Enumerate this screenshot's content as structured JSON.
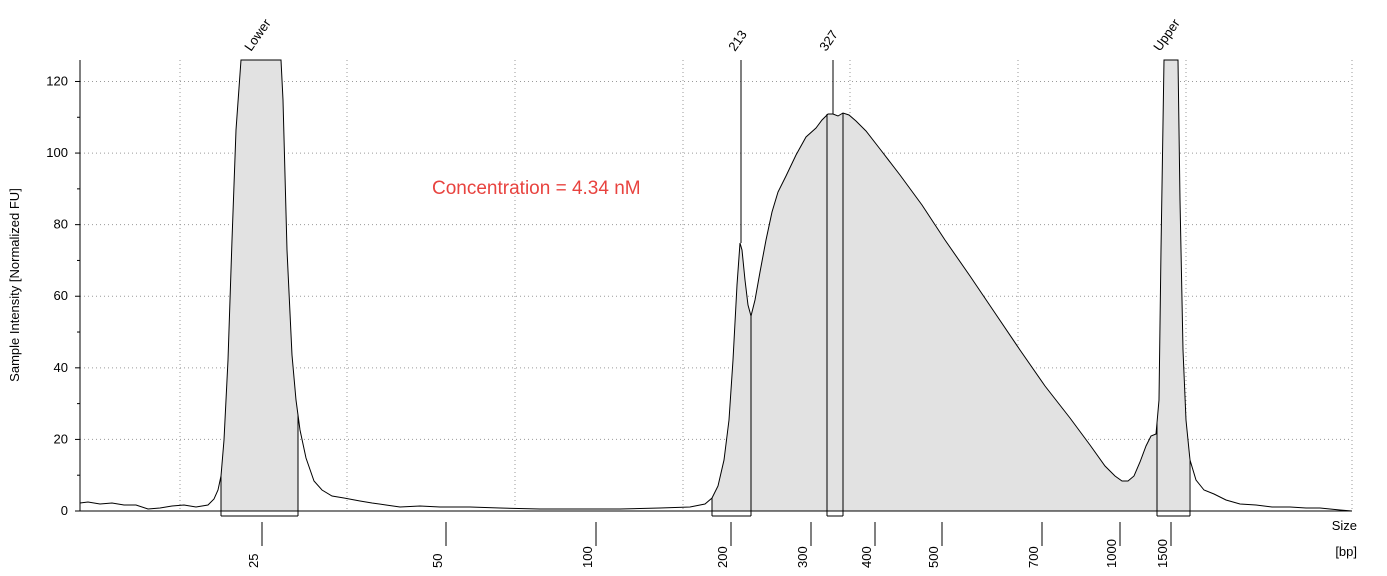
{
  "chart_data": {
    "type": "area",
    "ylabel": "Sample Intensity [Normalized FU]",
    "xlabel_line1": "Size",
    "xlabel_line2": "[bp]",
    "ylim": [
      0,
      126
    ],
    "yticks": [
      0,
      20,
      40,
      60,
      80,
      100,
      120
    ],
    "xticks": [
      "25",
      "50",
      "100",
      "200",
      "300",
      "400",
      "500",
      "700",
      "1000",
      "1500"
    ],
    "grid": true,
    "annotation": {
      "text": "Concentration = 4.34 nM",
      "color": "#e8433f"
    },
    "peak_labels": [
      "Lower",
      "213",
      "327",
      "Upper"
    ],
    "fill_color": "#e2e2e2",
    "line_color": "#000000"
  }
}
